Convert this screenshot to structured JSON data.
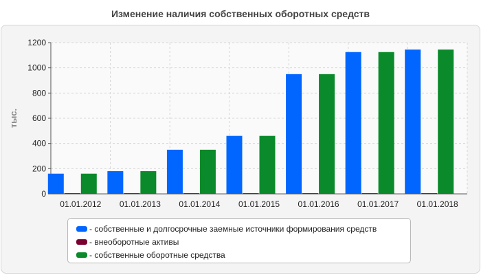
{
  "chart_data": {
    "type": "bar",
    "title": "Изменение наличия собственных оборотных средств",
    "ylabel": "тыс.",
    "xlabel": "",
    "ylim": [
      0,
      1200
    ],
    "yticks": [
      0,
      200,
      400,
      600,
      800,
      1000,
      1200
    ],
    "grid": true,
    "legend_placement": "bottom",
    "categories": [
      "01.01.2012",
      "01.01.2013",
      "01.01.2014",
      "01.01.2015",
      "01.01.2016",
      "01.01.2017",
      "01.01.2018"
    ],
    "series": [
      {
        "name": "- собственные и долгосрочные заемные источники формирования средств",
        "color": "#0066ff",
        "values": [
          160,
          180,
          350,
          460,
          950,
          1125,
          1145
        ]
      },
      {
        "name": "- внеоборотные активы",
        "color": "#7a0030",
        "values": [
          5,
          5,
          5,
          5,
          5,
          5,
          5
        ]
      },
      {
        "name": "- собственные оборотные средства",
        "color": "#0a8a2a",
        "values": [
          160,
          180,
          350,
          460,
          950,
          1125,
          1145
        ]
      }
    ]
  }
}
